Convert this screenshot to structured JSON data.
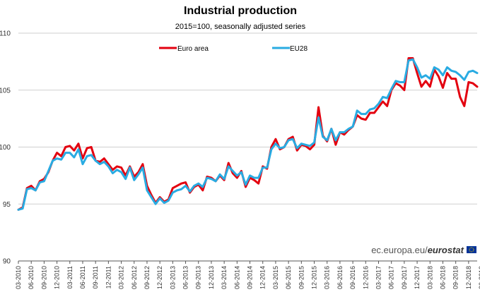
{
  "chart_data": {
    "type": "line",
    "title": "Industrial production",
    "subtitle": "2015=100, seasonally adjusted series",
    "xlabel": "",
    "ylabel": "",
    "ylim": [
      90,
      110
    ],
    "yticks": [
      90,
      95,
      100,
      105,
      110
    ],
    "grid": "horizontal",
    "legend_position": "top",
    "source": {
      "prefix": "ec.europa.eu/",
      "brand": "eurostat"
    },
    "x_start": "03-2010",
    "x_end": "03-2019",
    "tick_labels": [
      "03-2010",
      "06-2010",
      "09-2010",
      "12-2010",
      "03-2011",
      "06-2011",
      "09-2011",
      "12-2011",
      "03-2012",
      "06-2012",
      "09-2012",
      "12-2012",
      "03-2013",
      "06-2013",
      "09-2013",
      "12-2013",
      "03-2014",
      "06-2014",
      "09-2014",
      "12-2014",
      "03-2015",
      "06-2015",
      "09-2015",
      "12-2015",
      "03-2016",
      "06-2016",
      "09-2016",
      "12-2016",
      "03-2017",
      "06-2017",
      "09-2017",
      "12-2017",
      "03-2018",
      "06-2018",
      "09-2018",
      "12-2018",
      "03-2019"
    ],
    "series": [
      {
        "name": "Euro area",
        "color": "#e3000f",
        "values": [
          94.5,
          94.7,
          96.4,
          96.6,
          96.2,
          97.0,
          97.2,
          97.8,
          98.8,
          99.5,
          99.2,
          100.0,
          100.1,
          99.7,
          100.3,
          99.0,
          99.9,
          100.0,
          98.8,
          98.7,
          99.0,
          98.5,
          98.0,
          98.3,
          98.2,
          97.5,
          98.3,
          97.4,
          97.8,
          98.5,
          96.6,
          95.8,
          95.1,
          95.6,
          95.2,
          95.4,
          96.4,
          96.6,
          96.8,
          96.9,
          96.0,
          96.5,
          96.7,
          96.2,
          97.4,
          97.3,
          97.0,
          97.5,
          97.1,
          98.6,
          97.7,
          97.3,
          97.9,
          96.5,
          97.3,
          97.1,
          96.8,
          98.3,
          98.1,
          100.0,
          100.7,
          99.8,
          100.0,
          100.7,
          100.9,
          99.7,
          100.2,
          100.1,
          99.8,
          100.2,
          103.5,
          101.0,
          100.5,
          101.6,
          100.2,
          101.3,
          101.1,
          101.5,
          101.8,
          102.8,
          102.5,
          102.4,
          103.0,
          103.0,
          103.5,
          104.0,
          103.6,
          105.0,
          105.6,
          105.4,
          105.0,
          107.8,
          107.8,
          106.5,
          105.3,
          105.8,
          105.3,
          106.8,
          106.2,
          105.2,
          106.5,
          106.0,
          106.0,
          104.4,
          103.6,
          105.7,
          105.6,
          105.3
        ]
      },
      {
        "name": "EU28",
        "color": "#29abe2",
        "values": [
          94.5,
          94.6,
          96.3,
          96.4,
          96.2,
          96.9,
          97.0,
          97.9,
          98.8,
          99.0,
          98.9,
          99.5,
          99.5,
          99.1,
          99.8,
          98.5,
          99.2,
          99.3,
          98.8,
          98.5,
          98.7,
          98.3,
          97.7,
          98.0,
          97.8,
          97.2,
          98.2,
          97.1,
          97.6,
          98.2,
          96.2,
          95.6,
          95.0,
          95.5,
          95.1,
          95.3,
          96.0,
          96.2,
          96.3,
          96.6,
          96.1,
          96.6,
          96.8,
          96.5,
          97.3,
          97.2,
          97.0,
          97.6,
          97.2,
          98.3,
          97.9,
          97.5,
          97.8,
          96.7,
          97.5,
          97.3,
          97.3,
          98.2,
          98.2,
          99.8,
          100.3,
          99.9,
          100.0,
          100.6,
          100.7,
          99.9,
          100.3,
          100.2,
          100.1,
          100.4,
          102.6,
          100.9,
          100.6,
          101.6,
          100.6,
          101.3,
          101.3,
          101.6,
          101.8,
          103.2,
          102.9,
          102.9,
          103.3,
          103.4,
          103.8,
          104.4,
          104.3,
          105.1,
          105.8,
          105.7,
          105.7,
          107.6,
          107.7,
          107.0,
          106.1,
          106.3,
          106.0,
          107.0,
          106.8,
          106.3,
          107.0,
          106.7,
          106.6,
          106.3,
          105.9,
          106.6,
          106.7,
          106.5
        ]
      }
    ]
  }
}
